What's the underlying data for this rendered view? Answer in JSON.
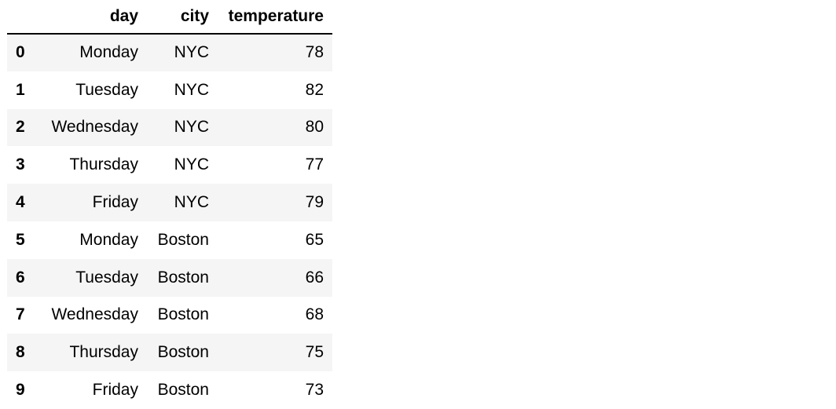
{
  "table": {
    "columns": [
      "",
      "day",
      "city",
      "temperature"
    ],
    "rows": [
      {
        "index": "0",
        "day": "Monday",
        "city": "NYC",
        "temperature": "78"
      },
      {
        "index": "1",
        "day": "Tuesday",
        "city": "NYC",
        "temperature": "82"
      },
      {
        "index": "2",
        "day": "Wednesday",
        "city": "NYC",
        "temperature": "80"
      },
      {
        "index": "3",
        "day": "Thursday",
        "city": "NYC",
        "temperature": "77"
      },
      {
        "index": "4",
        "day": "Friday",
        "city": "NYC",
        "temperature": "79"
      },
      {
        "index": "5",
        "day": "Monday",
        "city": "Boston",
        "temperature": "65"
      },
      {
        "index": "6",
        "day": "Tuesday",
        "city": "Boston",
        "temperature": "66"
      },
      {
        "index": "7",
        "day": "Wednesday",
        "city": "Boston",
        "temperature": "68"
      },
      {
        "index": "8",
        "day": "Thursday",
        "city": "Boston",
        "temperature": "75"
      },
      {
        "index": "9",
        "day": "Friday",
        "city": "Boston",
        "temperature": "73"
      }
    ]
  },
  "colors": {
    "striped_row": "#f5f5f5",
    "header_rule": "#000000"
  }
}
